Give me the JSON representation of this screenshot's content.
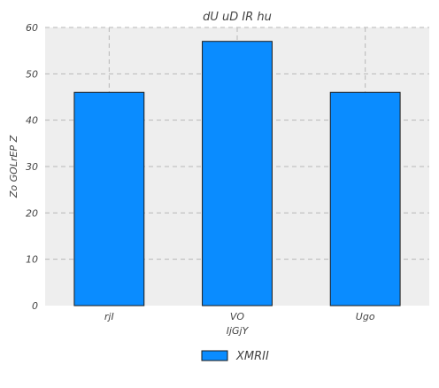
{
  "chart_data": {
    "type": "bar",
    "title": "dU uD IR hu",
    "xlabel": "IjGjY",
    "ylabel": "Zo GOLrEP Z",
    "categories": [
      "rjI",
      "VO",
      "Ugo"
    ],
    "series": [
      {
        "name": "XMRII",
        "values": [
          46,
          57,
          46
        ]
      }
    ],
    "ylim": [
      0,
      60
    ],
    "yticks": [
      0,
      10,
      20,
      30,
      40,
      50,
      60
    ],
    "grid": true,
    "legend_position": "bottom-center",
    "colors": {
      "bar": "#0a8cff",
      "bar_edge": "#1a1a1a",
      "plot_background": "#eeeeee",
      "grid": "#b8b8b8",
      "text": "#444444"
    }
  }
}
